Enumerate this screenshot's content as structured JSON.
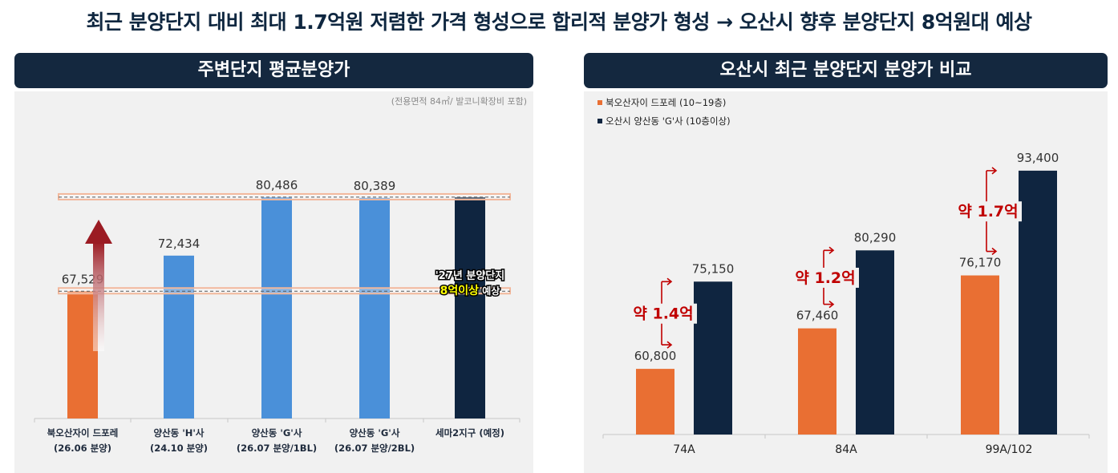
{
  "headline": "최근 분양단지 대비 최대 1.7억원 저렴한 가격 형성으로 합리적 분양가 형성 → 오산시 향후 분양단지 8억원대 예상",
  "colors": {
    "navy": "#14283f",
    "orange": "#e96f33",
    "blue": "#4a90d9",
    "dark_bar": "#0f2540",
    "arrow_red": "#9b1b23",
    "guide": "#f2b79b",
    "gap_label": "#c00000",
    "highlight": "#ffff00"
  },
  "chart_data": [
    {
      "type": "bar",
      "title": "주변단지 평균분양가",
      "note": "(전용면적 84㎡/ 발코니확장비 포함)",
      "ylim": [
        50000,
        86000
      ],
      "grid": false,
      "categories": [
        [
          "북오산자이 드포레",
          "(26.06 분양)"
        ],
        [
          "양산동 'H'사",
          "(24.10 분양)"
        ],
        [
          "양산동 'G'사",
          "(26.07 분양/1BL)"
        ],
        [
          "양산동 'G'사",
          "(26.07 분양/2BL)"
        ],
        [
          "세마2지구 (예정)",
          ""
        ]
      ],
      "values": [
        67529,
        72434,
        80486,
        80389,
        80486
      ],
      "labels": [
        "67,529",
        "72,434",
        "80,486",
        "80,389",
        ""
      ],
      "bar_colors": [
        "orange",
        "blue",
        "blue",
        "blue",
        "dark_bar"
      ],
      "annotation": {
        "line1": "'27년 분양단지",
        "highlight": "8억이상",
        "rest": " 예상"
      }
    },
    {
      "type": "bar",
      "title": "오산시 최근 분양단지 분양가 비교",
      "legend_position": "top-left",
      "ylim": [
        50000,
        98000
      ],
      "grid": false,
      "categories": [
        "74A",
        "84A",
        "99A/102"
      ],
      "series": [
        {
          "name": "북오산자이 드포레 (10~19층)",
          "color": "orange",
          "values": [
            60800,
            67460,
            76170
          ],
          "labels": [
            "60,800",
            "67,460",
            "76,170"
          ]
        },
        {
          "name": "오산시 양산동 'G'사 (10층이상)",
          "color": "dark_bar",
          "values": [
            75150,
            80290,
            93400
          ],
          "labels": [
            "75,150",
            "80,290",
            "93,400"
          ]
        }
      ],
      "gaps": [
        "약 1.4억",
        "약 1.2억",
        "약 1.7억"
      ]
    }
  ]
}
